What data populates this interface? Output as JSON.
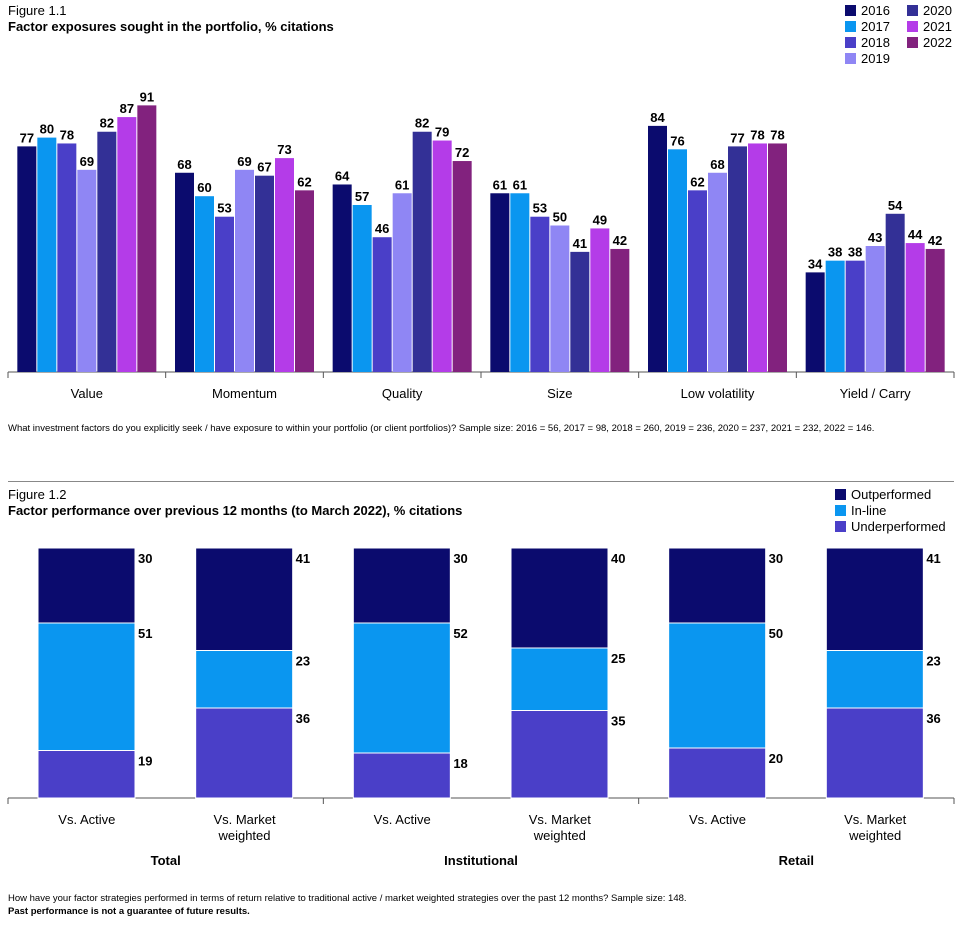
{
  "figure1": {
    "label": "Figure 1.1",
    "title": "Factor exposures sought in the portfolio, % citations",
    "note": "What investment factors do you explicitly seek / have exposure to within your portfolio (or client portfolios)? Sample size: 2016 = 56, 2017 = 98, 2018 = 260, 2019 = 236, 2020 = 237, 2021 = 232, 2022 = 146."
  },
  "figure2": {
    "label": "Figure 1.2",
    "title": "Factor performance over previous 12 months (to March 2022), % citations",
    "note": "How have your factor strategies performed in terms of return relative to traditional active / market weighted strategies over the past 12 months? Sample size: 148.",
    "note_bold": "Past performance is not a guarantee of future results."
  },
  "chart_data": [
    {
      "type": "bar",
      "title": "Factor exposures sought in the portfolio, % citations",
      "categories": [
        "Value",
        "Momentum",
        "Quality",
        "Size",
        "Low volatility",
        "Yield / Carry"
      ],
      "ylim": [
        0,
        100
      ],
      "grid": false,
      "legend_position": "top-right",
      "series": [
        {
          "name": "2016",
          "color": "#0b0b6e",
          "values": [
            77,
            68,
            64,
            61,
            84,
            34
          ]
        },
        {
          "name": "2017",
          "color": "#0a96f0",
          "values": [
            80,
            60,
            57,
            61,
            76,
            38
          ]
        },
        {
          "name": "2018",
          "color": "#4a3fc8",
          "values": [
            78,
            53,
            46,
            53,
            62,
            38
          ]
        },
        {
          "name": "2019",
          "color": "#8f86f4",
          "values": [
            69,
            69,
            61,
            50,
            68,
            43
          ]
        },
        {
          "name": "2020",
          "color": "#333096",
          "values": [
            82,
            67,
            82,
            41,
            77,
            54
          ]
        },
        {
          "name": "2021",
          "color": "#b43ce8",
          "values": [
            87,
            73,
            79,
            49,
            78,
            44
          ]
        },
        {
          "name": "2022",
          "color": "#82227e",
          "values": [
            91,
            62,
            72,
            42,
            78,
            42
          ]
        }
      ]
    },
    {
      "type": "bar",
      "stacked": true,
      "title": "Factor performance over previous 12 months (to March 2022), % citations",
      "categories": [
        "Vs. Active",
        "Vs. Market weighted",
        "Vs. Active",
        "Vs. Market weighted",
        "Vs. Active",
        "Vs. Market weighted"
      ],
      "category_lines": [
        [
          "Vs. Active"
        ],
        [
          "Vs. Market",
          "weighted"
        ],
        [
          "Vs. Active"
        ],
        [
          "Vs. Market",
          "weighted"
        ],
        [
          "Vs. Active"
        ],
        [
          "Vs. Market",
          "weighted"
        ]
      ],
      "groups": [
        "Total",
        "Institutional",
        "Retail"
      ],
      "ylim": [
        0,
        100
      ],
      "grid": false,
      "legend_position": "top-right",
      "series": [
        {
          "name": "Outperformed",
          "color": "#0b0b6e",
          "values": [
            30,
            41,
            30,
            40,
            30,
            41
          ]
        },
        {
          "name": "In-line",
          "color": "#0a96f0",
          "values": [
            51,
            23,
            52,
            25,
            50,
            23
          ]
        },
        {
          "name": "Underperformed",
          "color": "#4a3fc8",
          "values": [
            19,
            36,
            18,
            35,
            20,
            36
          ]
        }
      ]
    }
  ]
}
